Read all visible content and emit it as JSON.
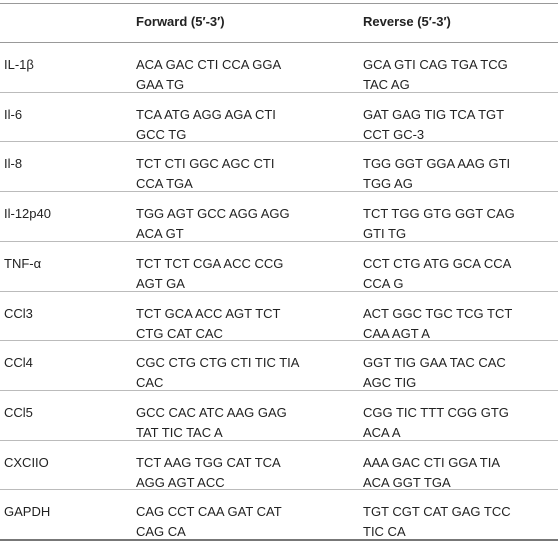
{
  "table": {
    "header": [
      "",
      "Forward (5′-3′)",
      "Reverse (5′-3′)"
    ],
    "rows": [
      [
        [
          "IL-1β"
        ],
        [
          "ACA GAC CTI CCA GGA",
          "GAA TG"
        ],
        [
          "GCA GTI CAG TGA TCG",
          "TAC AG"
        ]
      ],
      [
        [
          "Il-6"
        ],
        [
          "TCA ATG AGG AGA CTI",
          "GCC TG"
        ],
        [
          "GAT GAG TIG TCA TGT",
          "CCT GC-3"
        ]
      ],
      [
        [
          "Il-8"
        ],
        [
          "TCT CTI GGC AGC CTI",
          "CCA TGA"
        ],
        [
          "TGG GGT GGA AAG GTI",
          "TGG AG"
        ]
      ],
      [
        [
          "Il-12p40"
        ],
        [
          "TGG AGT GCC AGG AGG",
          "ACA GT"
        ],
        [
          "TCT TGG GTG GGT CAG",
          "GTI TG"
        ]
      ],
      [
        [
          "TNF-α"
        ],
        [
          "TCT TCT CGA ACC CCG",
          "AGT GA"
        ],
        [
          "CCT CTG ATG GCA CCA",
          "CCA G"
        ]
      ],
      [
        [
          "CCl3"
        ],
        [
          "TCT GCA ACC AGT TCT",
          "CTG CAT CAC"
        ],
        [
          "ACT GGC TGC TCG TCT",
          "CAA AGT A"
        ]
      ],
      [
        [
          "CCl4"
        ],
        [
          "CGC CTG CTG CTI TIC TIA",
          "CAC"
        ],
        [
          "GGT TIG GAA TAC CAC",
          "AGC TIG"
        ]
      ],
      [
        [
          "CCl5"
        ],
        [
          "GCC CAC ATC AAG GAG",
          "TAT TIC TAC A"
        ],
        [
          "CGG TIC TTT CGG GTG",
          "ACA A"
        ]
      ],
      [
        [
          "CXCIIO"
        ],
        [
          "TCT AAG TGG CAT TCA",
          "AGG AGT ACC"
        ],
        [
          "AAA GAC CTI GGA TIA",
          "ACA GGT TGA"
        ]
      ],
      [
        [
          "GAPDH"
        ],
        [
          "CAG CCT CAA GAT CAT",
          "CAG CA"
        ],
        [
          "TGT CGT CAT GAG TCC",
          "TIC CA"
        ]
      ]
    ]
  }
}
